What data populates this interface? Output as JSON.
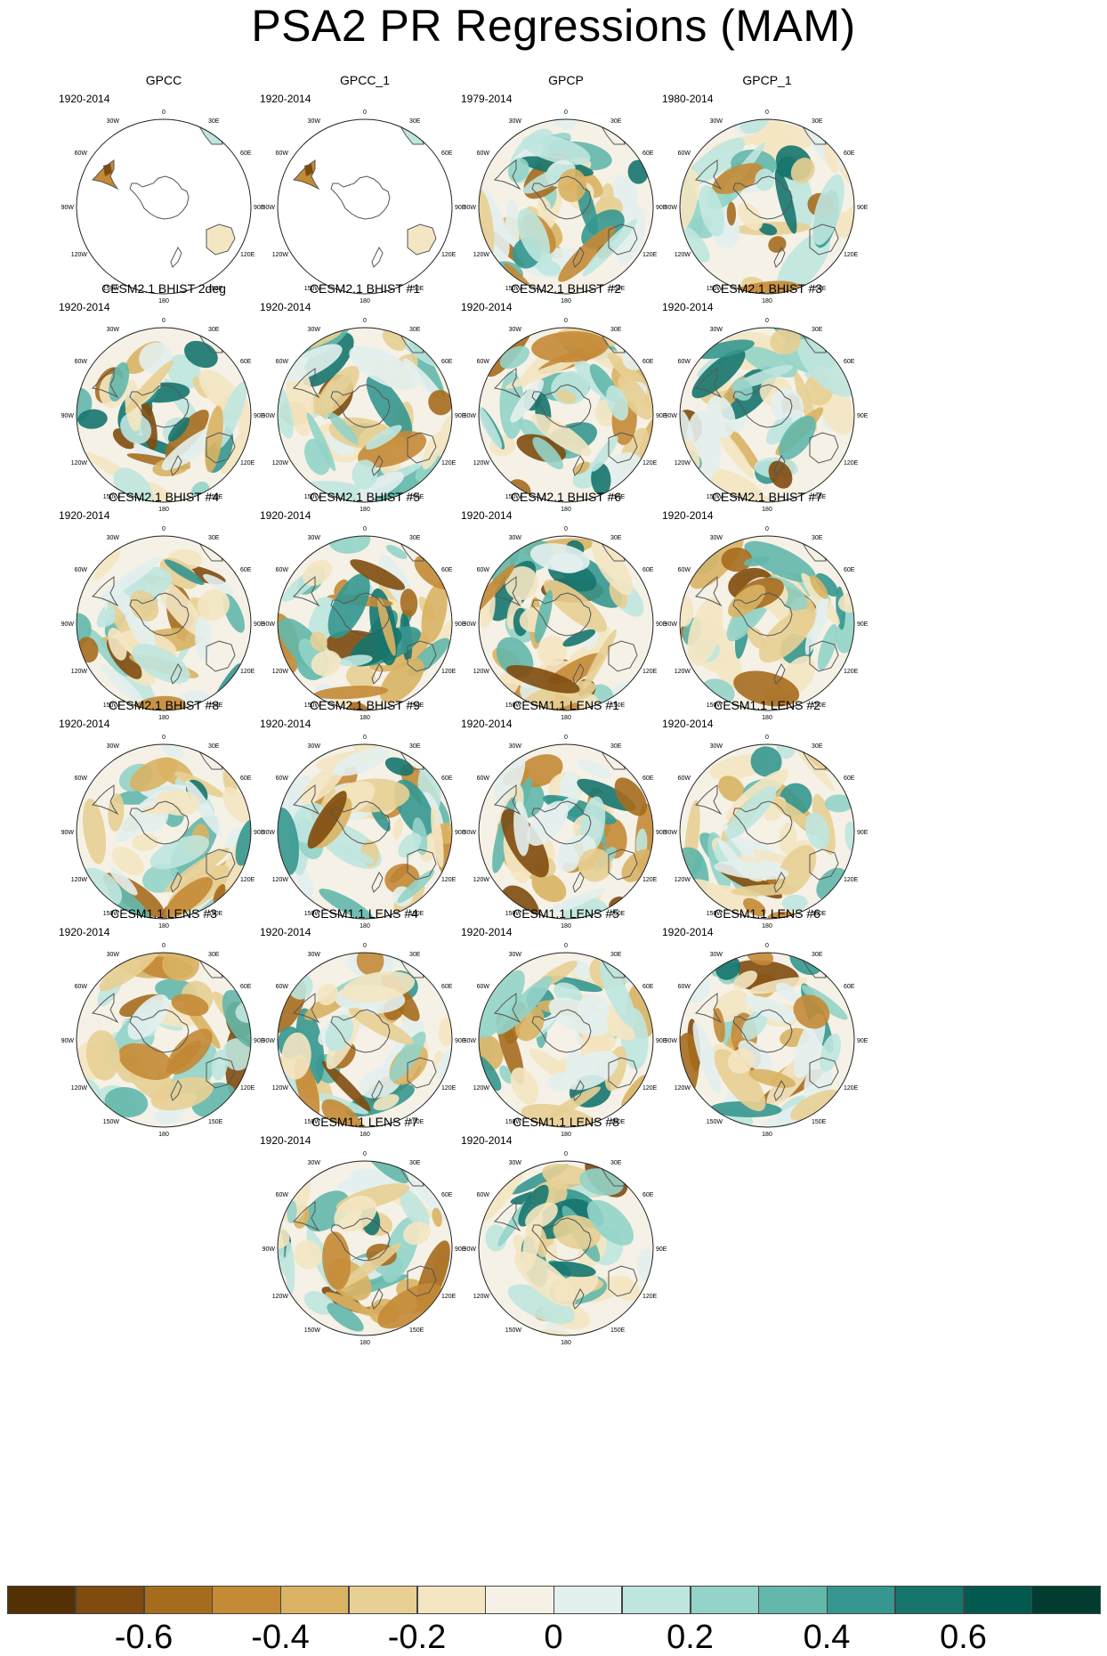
{
  "title": "PSA2 PR Regressions (MAM)",
  "map_labels": {
    "lon_0": "0",
    "lon_30e": "30E",
    "lon_60e": "60E",
    "lon_90e": "90E",
    "lon_120e": "120E",
    "lon_150e": "150E",
    "lon_180": "180",
    "lon_150w": "150W",
    "lon_120w": "120W",
    "lon_90w": "90W",
    "lon_60w": "60W",
    "lon_30w": "30W"
  },
  "panels": [
    {
      "title": "GPCC",
      "period": "1920-2014",
      "coverage": "land"
    },
    {
      "title": "GPCC_1",
      "period": "1920-2014",
      "coverage": "land"
    },
    {
      "title": "GPCP",
      "period": "1979-2014",
      "coverage": "full"
    },
    {
      "title": "GPCP_1",
      "period": "1980-2014",
      "coverage": "full"
    },
    {
      "title": "CESM2.1 BHIST 2deg",
      "period": "1920-2014",
      "coverage": "full"
    },
    {
      "title": "CESM2.1 BHIST #1",
      "period": "1920-2014",
      "coverage": "full"
    },
    {
      "title": "CESM2.1 BHIST #2",
      "period": "1920-2014",
      "coverage": "full"
    },
    {
      "title": "CESM2.1 BHIST #3",
      "period": "1920-2014",
      "coverage": "full"
    },
    {
      "title": "CESM2.1 BHIST #4",
      "period": "1920-2014",
      "coverage": "full"
    },
    {
      "title": "CESM2.1 BHIST #5",
      "period": "1920-2014",
      "coverage": "full"
    },
    {
      "title": "CESM2.1 BHIST #6",
      "period": "1920-2014",
      "coverage": "full"
    },
    {
      "title": "CESM2.1 BHIST #7",
      "period": "1920-2014",
      "coverage": "full"
    },
    {
      "title": "CESM2.1 BHIST #8",
      "period": "1920-2014",
      "coverage": "full"
    },
    {
      "title": "CESM2.1 BHIST #9",
      "period": "1920-2014",
      "coverage": "full"
    },
    {
      "title": "CESM1.1 LENS #1",
      "period": "1920-2014",
      "coverage": "full"
    },
    {
      "title": "CESM1.1 LENS #2",
      "period": "1920-2014",
      "coverage": "full"
    },
    {
      "title": "CESM1.1 LENS #3",
      "period": "1920-2014",
      "coverage": "full"
    },
    {
      "title": "CESM1.1 LENS #4",
      "period": "1920-2014",
      "coverage": "full"
    },
    {
      "title": "CESM1.1 LENS #5",
      "period": "1920-2014",
      "coverage": "full"
    },
    {
      "title": "CESM1.1 LENS #6",
      "period": "1920-2014",
      "coverage": "full"
    },
    {
      "title": "CESM1.1 LENS #7",
      "period": "1920-2014",
      "coverage": "full"
    },
    {
      "title": "CESM1.1 LENS #8",
      "period": "1920-2014",
      "coverage": "full"
    }
  ],
  "colorbar": {
    "colors": [
      "#543005",
      "#7f4b0e",
      "#a66c1e",
      "#c48a36",
      "#d9b263",
      "#e8cf93",
      "#f4e6c2",
      "#f5f1e6",
      "#e3f0ee",
      "#bfe5df",
      "#93d3c8",
      "#63b7ab",
      "#35978f",
      "#16766e",
      "#01594f",
      "#003c30"
    ],
    "tick_labels": [
      "-0.6",
      "-0.4",
      "-0.2",
      "0",
      "0.2",
      "0.4",
      "0.6"
    ],
    "tick_values": [
      -0.6,
      -0.4,
      -0.2,
      0,
      0.2,
      0.4,
      0.6
    ],
    "range": [
      -0.8,
      0.8
    ]
  }
}
